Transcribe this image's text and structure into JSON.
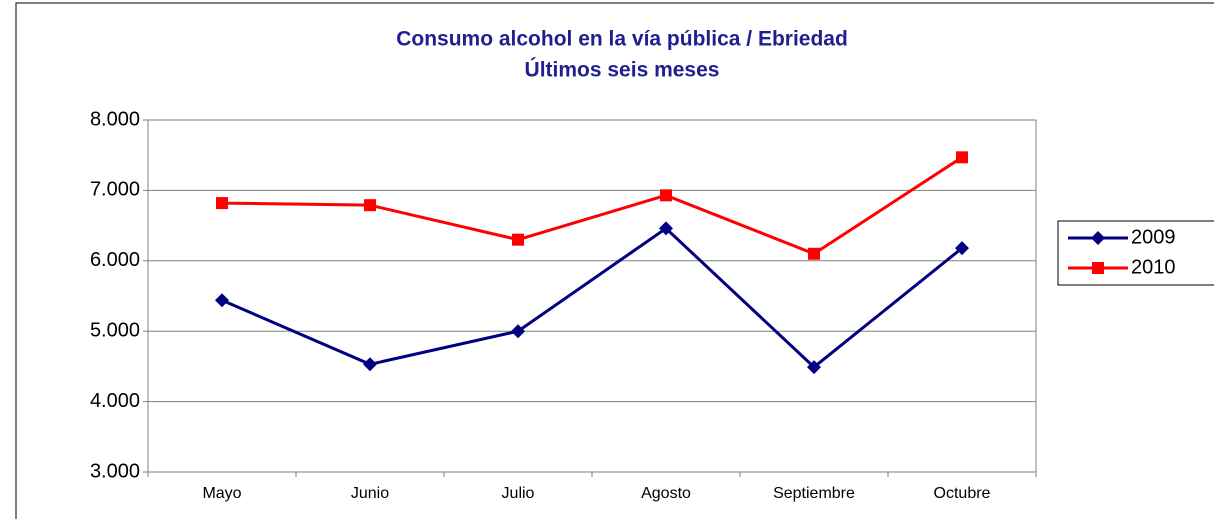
{
  "chart_data": {
    "type": "line",
    "title": "Consumo alcohol en la vía pública / Ebriedad",
    "subtitle": "Últimos seis meses",
    "categories": [
      "Mayo",
      "Junio",
      "Julio",
      "Agosto",
      "Septiembre",
      "Octubre"
    ],
    "series": [
      {
        "name": "2009",
        "color": "#000080",
        "marker": "diamond",
        "values": [
          5440,
          4530,
          5000,
          6460,
          4490,
          6180
        ]
      },
      {
        "name": "2010",
        "color": "#ff0000",
        "marker": "square",
        "values": [
          6820,
          6790,
          6300,
          6930,
          6100,
          7470
        ]
      }
    ],
    "ylim": [
      3000,
      8000
    ],
    "yticks": [
      {
        "value": 3000,
        "label": "3.000"
      },
      {
        "value": 4000,
        "label": "4.000"
      },
      {
        "value": 5000,
        "label": "5.000"
      },
      {
        "value": 6000,
        "label": "6.000"
      },
      {
        "value": 7000,
        "label": "7.000"
      },
      {
        "value": 8000,
        "label": "8.000"
      }
    ],
    "grid": true,
    "legend": "right"
  }
}
